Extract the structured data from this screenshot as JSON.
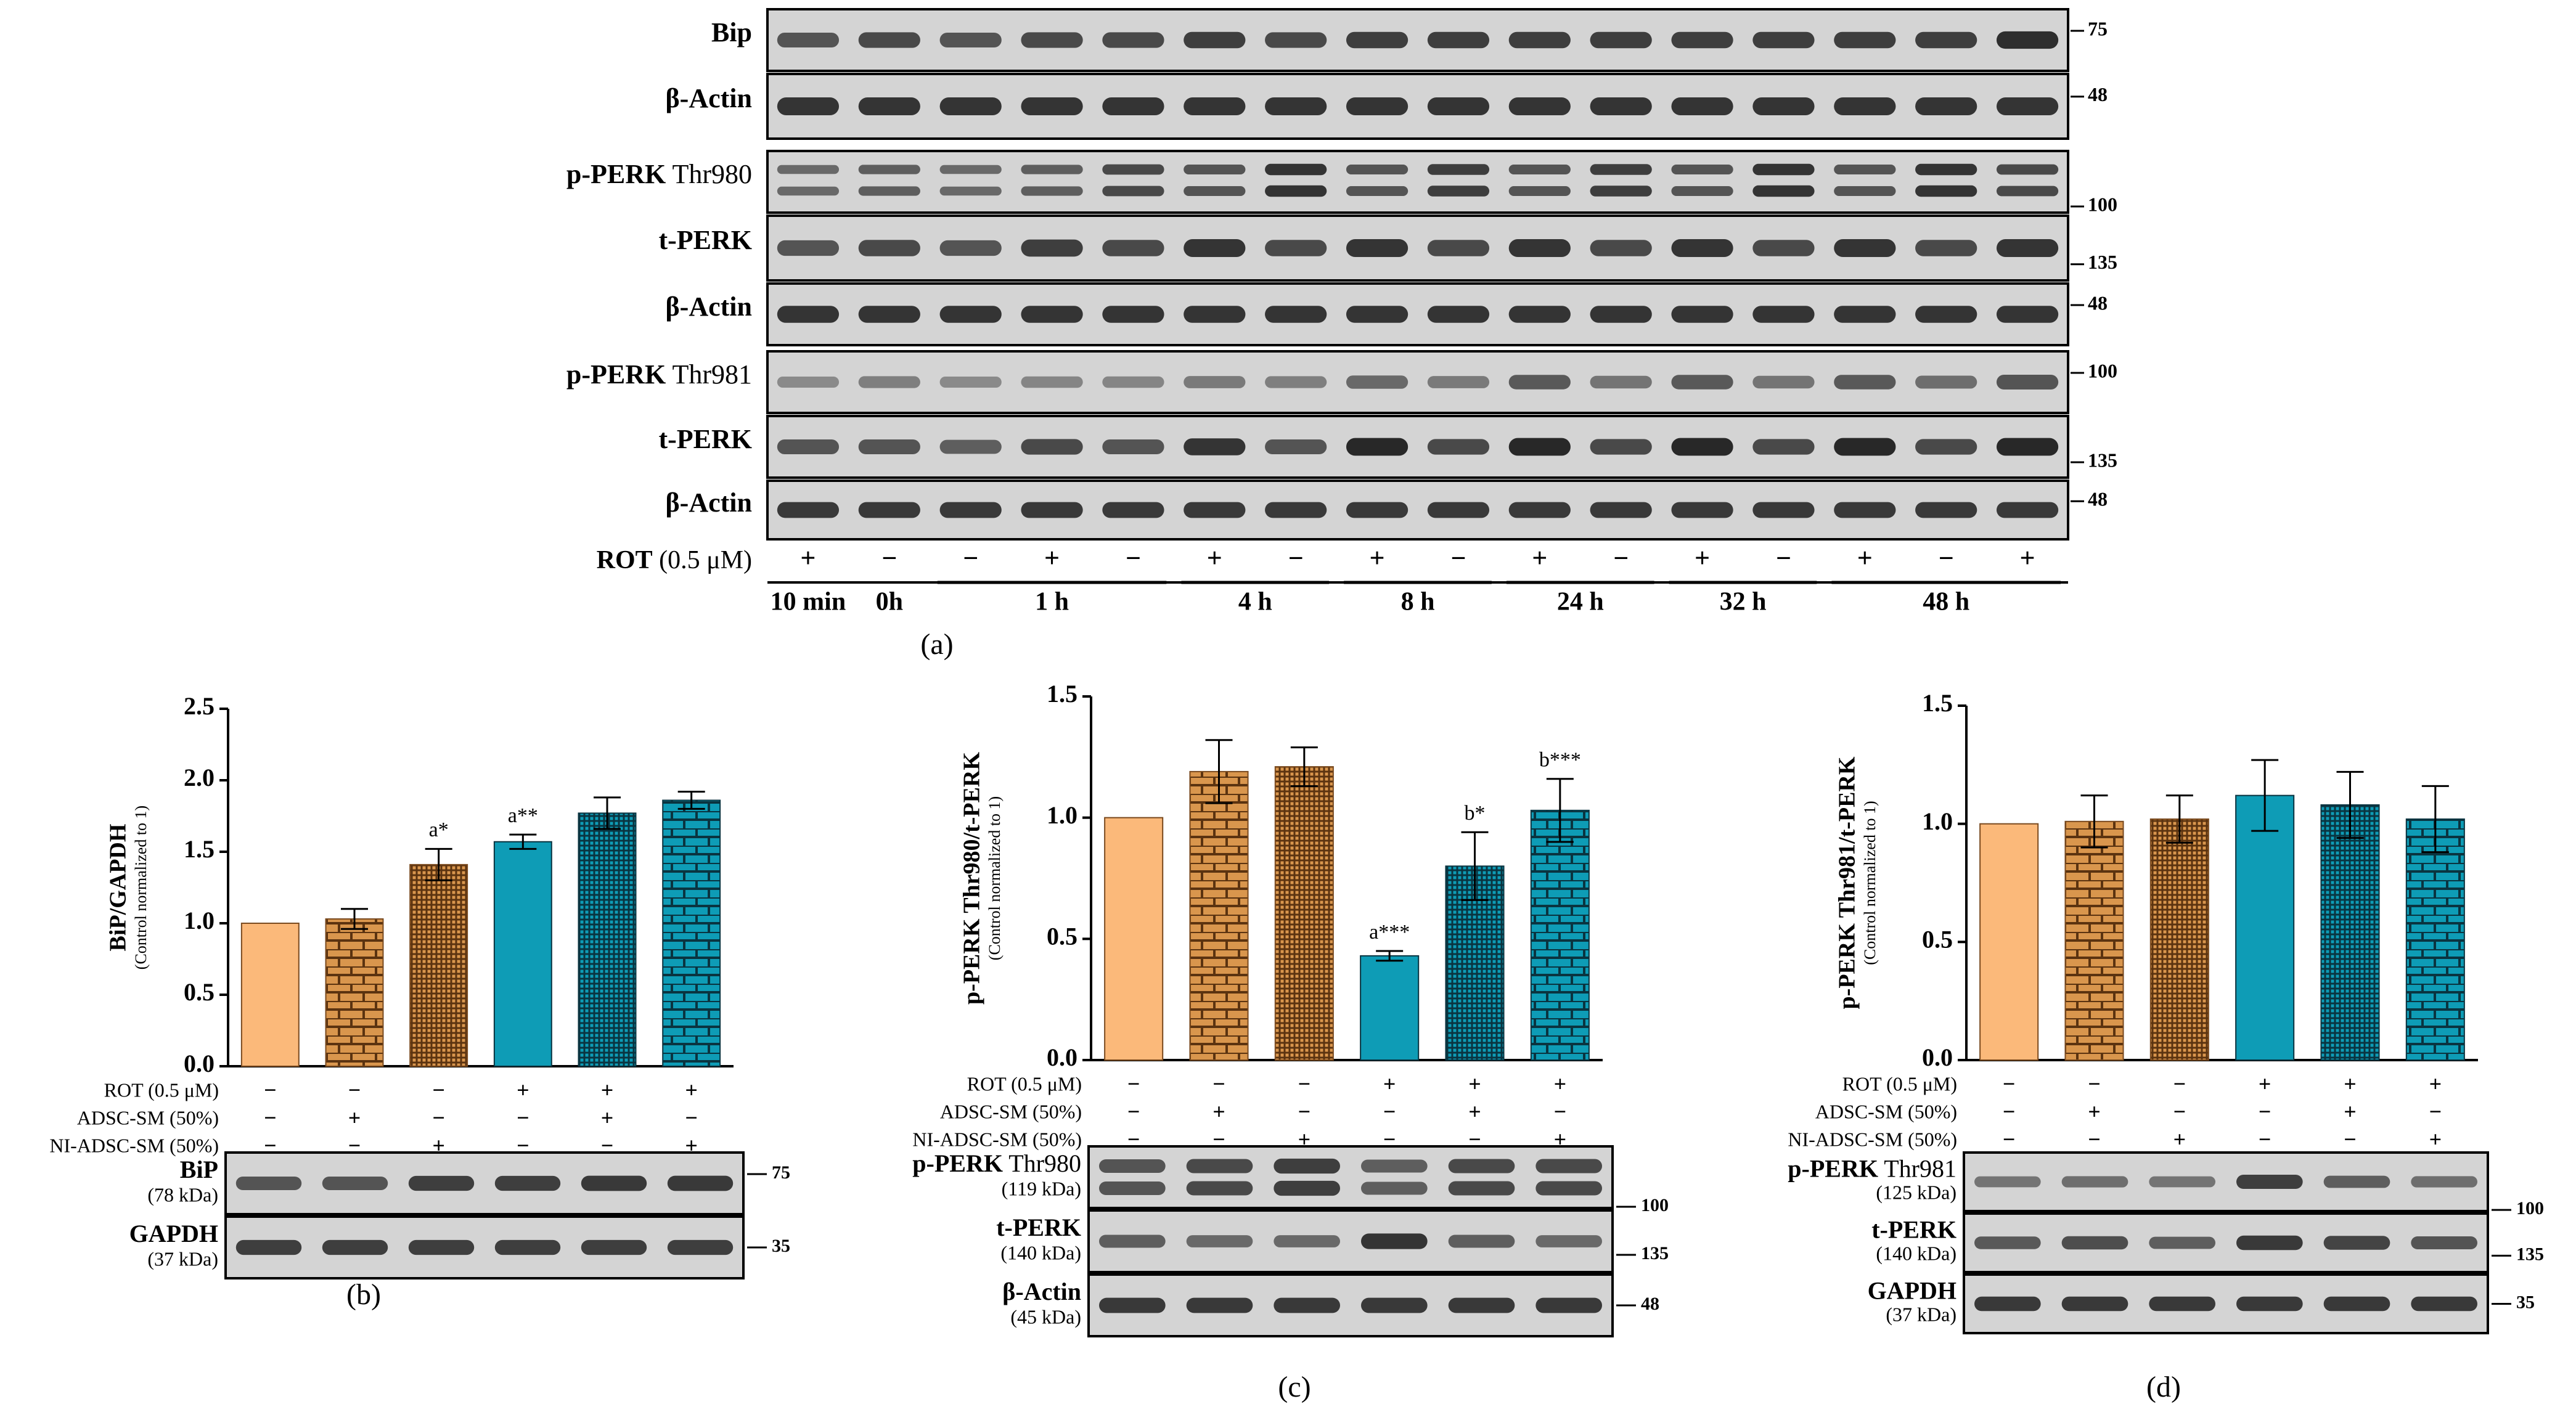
{
  "panel_a": {
    "caption": "(a)",
    "rows": [
      {
        "bold": "Bip",
        "normal": "",
        "marker": "75"
      },
      {
        "bold": "β-Actin",
        "normal": "",
        "marker": "48"
      },
      {
        "bold": "p-PERK",
        "normal": " Thr980",
        "marker": ""
      },
      {
        "bold": "t-PERK",
        "normal": "",
        "marker": "135"
      },
      {
        "bold": "β-Actin",
        "normal": "",
        "marker": "48"
      },
      {
        "bold": "p-PERK",
        "normal": " Thr981",
        "marker": "100"
      },
      {
        "bold": "t-PERK",
        "normal": "",
        "marker": "135"
      },
      {
        "bold": "β-Actin",
        "normal": "",
        "marker": "48"
      }
    ],
    "marker_100_between": "100",
    "treatment_label_bold": "ROT",
    "treatment_label_normal": " (0.5 μM)",
    "lane_signs": [
      "+",
      "−",
      "−",
      "+",
      "−",
      "+",
      "−",
      "+",
      "−",
      "+",
      "−",
      "+",
      "−",
      "+",
      "−",
      "+"
    ],
    "timepoints": [
      "10 min",
      "0h",
      "1 h",
      "4 h",
      "8 h",
      "24 h",
      "32 h",
      "48 h"
    ]
  },
  "chart_data": [
    {
      "type": "bar",
      "panel": "(b)",
      "ylabel": "BiP/GAPDH",
      "ylabel_sub": "(Control normalized to 1)",
      "ylim": [
        0,
        2.5
      ],
      "yticks": [
        "0.0",
        "0.5",
        "1.0",
        "1.5",
        "2.0",
        "2.5"
      ],
      "values": [
        1.0,
        1.03,
        1.41,
        1.57,
        1.77,
        1.86
      ],
      "errors": [
        0,
        0.07,
        0.11,
        0.05,
        0.11,
        0.06
      ],
      "annotations": [
        "",
        "",
        "a*",
        "a**",
        "",
        ""
      ],
      "treatments": [
        {
          "label": "ROT (0.5 μM)",
          "signs": [
            "−",
            "−",
            "−",
            "+",
            "+",
            "+"
          ]
        },
        {
          "label": "ADSC-SM (50%)",
          "signs": [
            "−",
            "+",
            "−",
            "−",
            "+",
            "−"
          ]
        },
        {
          "label": "NI-ADSC-SM (50%)",
          "signs": [
            "−",
            "−",
            "+",
            "−",
            "−",
            "+"
          ]
        }
      ],
      "blots": [
        {
          "bold": "BiP",
          "normal": "",
          "kda": "(78 kDa)",
          "marker": "75"
        },
        {
          "bold": "GAPDH",
          "normal": "",
          "kda": "(37 kDa)",
          "marker": "35"
        }
      ]
    },
    {
      "type": "bar",
      "panel": "(c)",
      "ylabel": "p-PERK Thr980/t-PERK",
      "ylabel_sub": "(Control normalized to 1)",
      "ylim": [
        0,
        1.5
      ],
      "yticks": [
        "0.0",
        "0.5",
        "1.0",
        "1.5"
      ],
      "values": [
        1.0,
        1.19,
        1.21,
        0.43,
        0.8,
        1.03
      ],
      "errors": [
        0,
        0.13,
        0.08,
        0.02,
        0.14,
        0.13
      ],
      "annotations": [
        "",
        "",
        "",
        "a***",
        "b*",
        "b***"
      ],
      "treatments": [
        {
          "label": "ROT (0.5 μM)",
          "signs": [
            "−",
            "−",
            "−",
            "+",
            "+",
            "+"
          ]
        },
        {
          "label": "ADSC-SM (50%)",
          "signs": [
            "−",
            "+",
            "−",
            "−",
            "+",
            "−"
          ]
        },
        {
          "label": "NI-ADSC-SM (50%)",
          "signs": [
            "−",
            "−",
            "+",
            "−",
            "−",
            "+"
          ]
        }
      ],
      "blots": [
        {
          "bold": "p-PERK",
          "normal": " Thr980",
          "kda": "(119 kDa)",
          "marker": "100"
        },
        {
          "bold": "t-PERK",
          "normal": "",
          "kda": "(140 kDa)",
          "marker": "135"
        },
        {
          "bold": "β-Actin",
          "normal": "",
          "kda": "(45 kDa)",
          "marker": "48"
        }
      ]
    },
    {
      "type": "bar",
      "panel": "(d)",
      "ylabel": "p-PERK Thr981/t-PERK",
      "ylabel_sub": "(Control normalized to 1)",
      "ylim": [
        0,
        1.5
      ],
      "yticks": [
        "0.0",
        "0.5",
        "1.0",
        "1.5"
      ],
      "values": [
        1.0,
        1.01,
        1.02,
        1.12,
        1.08,
        1.02
      ],
      "errors": [
        0,
        0.11,
        0.1,
        0.15,
        0.14,
        0.14
      ],
      "annotations": [
        "",
        "",
        "",
        "",
        "",
        ""
      ],
      "treatments": [
        {
          "label": "ROT (0.5 μM)",
          "signs": [
            "−",
            "−",
            "−",
            "+",
            "+",
            "+"
          ]
        },
        {
          "label": "ADSC-SM (50%)",
          "signs": [
            "−",
            "+",
            "−",
            "−",
            "+",
            "−"
          ]
        },
        {
          "label": "NI-ADSC-SM (50%)",
          "signs": [
            "−",
            "−",
            "+",
            "−",
            "−",
            "+"
          ]
        }
      ],
      "blots": [
        {
          "bold": "p-PERK",
          "normal": " Thr981",
          "kda": "(125 kDa)",
          "marker": "100"
        },
        {
          "bold": "t-PERK",
          "normal": "",
          "kda": "(140 kDa)",
          "marker": "135"
        },
        {
          "bold": "GAPDH",
          "normal": "",
          "kda": "(37 kDa)",
          "marker": "35"
        }
      ]
    }
  ],
  "colors": {
    "control": "#fbb97a",
    "adsc": "#d9964d",
    "adsc_pattern": "#7a4a1f",
    "rot": "#0e9cb6",
    "rot_pattern": "#0a3440",
    "blot_bg": "#d6d6d6",
    "band": "#262626"
  }
}
